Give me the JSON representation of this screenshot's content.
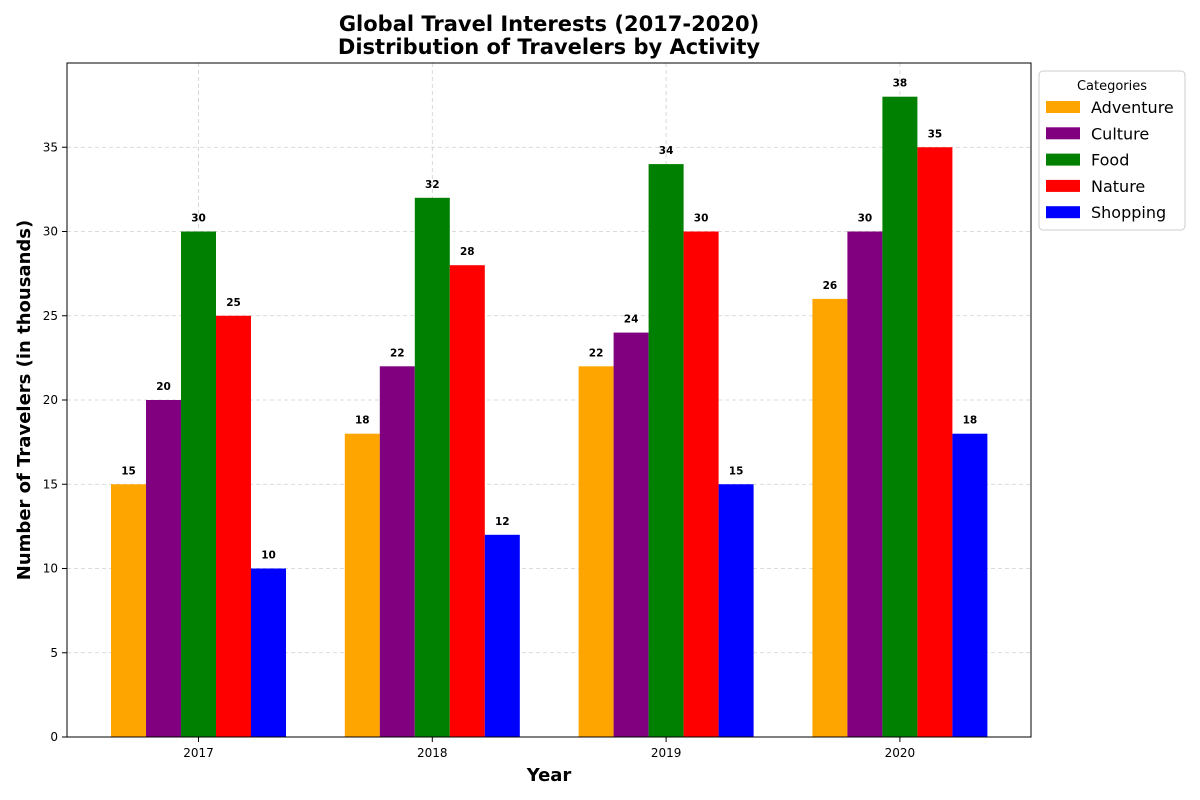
{
  "chart_data": {
    "type": "bar",
    "title": "Global Travel Interests (2017-2020)",
    "subtitle": "Distribution of Travelers by Activity",
    "xlabel": "Year",
    "ylabel": "Number of Travelers (in thousands)",
    "categories": [
      "2017",
      "2018",
      "2019",
      "2020"
    ],
    "ylim": [
      0,
      40
    ],
    "yticks": [
      0,
      5,
      10,
      15,
      20,
      25,
      30,
      35
    ],
    "grid": true,
    "legend": {
      "title": "Categories",
      "placement": "outside-top-right"
    },
    "series": [
      {
        "name": "Adventure",
        "color": "#ffa500",
        "values": [
          15,
          18,
          22,
          26
        ]
      },
      {
        "name": "Culture",
        "color": "#800080",
        "values": [
          20,
          22,
          24,
          30
        ]
      },
      {
        "name": "Food",
        "color": "#008000",
        "values": [
          30,
          32,
          34,
          38
        ]
      },
      {
        "name": "Nature",
        "color": "#ff0000",
        "values": [
          25,
          28,
          30,
          35
        ]
      },
      {
        "name": "Shopping",
        "color": "#0000ff",
        "values": [
          10,
          12,
          15,
          18
        ]
      }
    ]
  }
}
